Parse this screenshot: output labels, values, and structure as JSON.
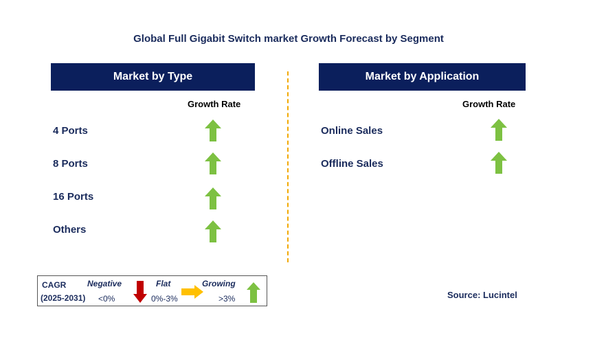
{
  "title": "Global Full Gigabit Switch market Growth Forecast by Segment",
  "left_panel": {
    "header": "Market by Type",
    "growth_label": "Growth Rate",
    "rows": [
      {
        "label": "4 Ports",
        "trend": "growing"
      },
      {
        "label": "8 Ports",
        "trend": "growing"
      },
      {
        "label": "16 Ports",
        "trend": "growing"
      },
      {
        "label": "Others",
        "trend": "growing"
      }
    ]
  },
  "right_panel": {
    "header": "Market by Application",
    "growth_label": "Growth Rate",
    "rows": [
      {
        "label": "Online Sales",
        "trend": "growing"
      },
      {
        "label": "Offline Sales",
        "trend": "growing"
      }
    ]
  },
  "legend": {
    "cagr": "CAGR",
    "period": "(2025-2031)",
    "negative": {
      "label": "Negative",
      "range": "<0%",
      "icon": "red-down-arrow-icon"
    },
    "flat": {
      "label": "Flat",
      "range": "0%-3%",
      "icon": "orange-right-arrow-icon"
    },
    "growing": {
      "label": "Growing",
      "range": ">3%",
      "icon": "green-up-arrow-icon"
    }
  },
  "source": "Source: Lucintel",
  "colors": {
    "header_bg": "#0b1f5c",
    "text_navy": "#1a2b5c",
    "growing": "#7dc142",
    "negative": "#c00000",
    "flat": "#ffc000",
    "divider": "#f2a900"
  }
}
